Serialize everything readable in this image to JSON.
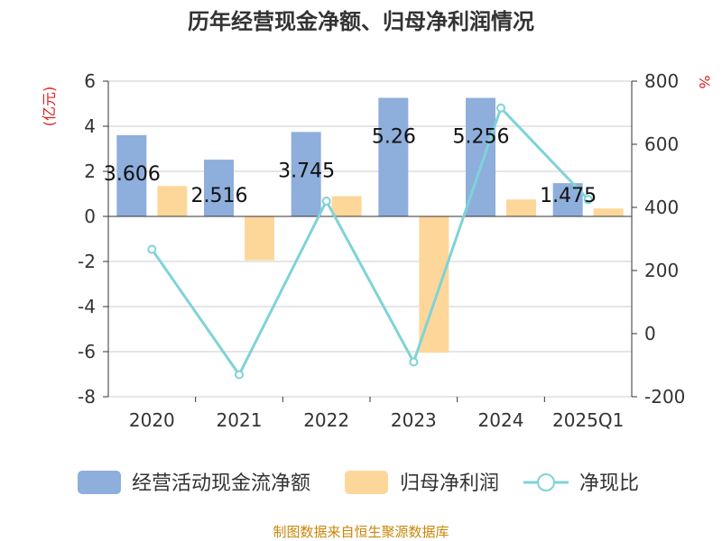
{
  "chart_data": {
    "type": "bar",
    "title": "历年经营现金净额、归母净利润情况",
    "categories": [
      "2020",
      "2021",
      "2022",
      "2023",
      "2024",
      "2025Q1"
    ],
    "series": [
      {
        "name": "经营活动现金流净额",
        "type": "bar",
        "axis": "left",
        "color": "#8eaedb",
        "values": [
          3.606,
          2.516,
          3.745,
          5.26,
          5.256,
          1.475
        ]
      },
      {
        "name": "归母净利润",
        "type": "bar",
        "axis": "left",
        "color": "#fdd79a",
        "values": [
          1.35,
          -1.95,
          0.9,
          -6.05,
          0.75,
          0.35
        ]
      },
      {
        "name": "净现比",
        "type": "line",
        "axis": "right",
        "color": "#7fd3d8",
        "values": [
          267,
          -130,
          420,
          -90,
          715,
          425
        ]
      }
    ],
    "data_labels": [
      "3.606",
      "2.516",
      "3.745",
      "5.26",
      "5.256",
      "1.475"
    ],
    "y_left": {
      "unit": "(亿元)",
      "ylim": [
        -8,
        6
      ],
      "ticks": [
        "6",
        "4",
        "2",
        "0",
        "-2",
        "-4",
        "-6",
        "-8"
      ]
    },
    "y_right": {
      "unit": "%",
      "ylim": [
        -200,
        800
      ],
      "ticks": [
        "800",
        "600",
        "400",
        "200",
        "0",
        "-200"
      ]
    },
    "grid": true,
    "legend_position": "bottom"
  },
  "source_text": "制图数据来自恒生聚源数据库"
}
